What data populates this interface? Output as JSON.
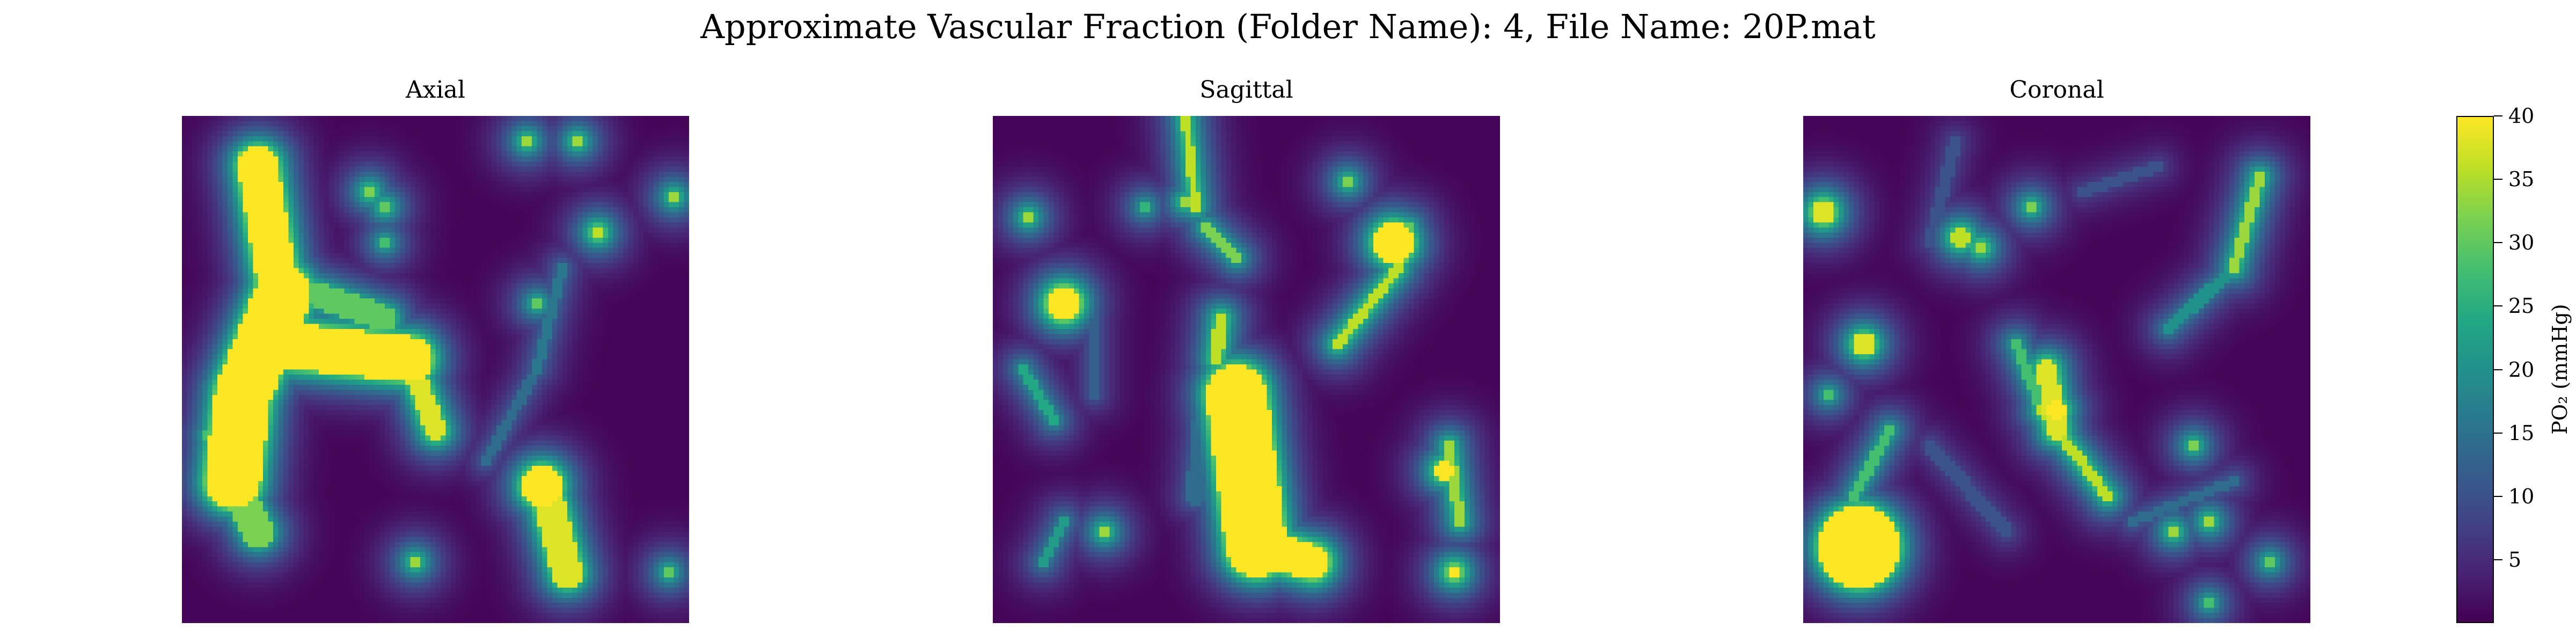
{
  "chart_data": {
    "type": "heatmap",
    "title": "Approximate Vascular Fraction (Folder Name): 4, File Name: 20P.mat",
    "panels": [
      {
        "title": "Axial",
        "vessels": [
          {
            "a": [
              0.15,
              0.1
            ],
            "b": [
              0.2,
              0.4
            ],
            "w": 0.04,
            "v": 40
          },
          {
            "a": [
              0.2,
              0.35
            ],
            "b": [
              0.12,
              0.55
            ],
            "w": 0.055,
            "v": 40
          },
          {
            "a": [
              0.12,
              0.55
            ],
            "b": [
              0.1,
              0.72
            ],
            "w": 0.055,
            "v": 40
          },
          {
            "a": [
              0.18,
              0.45
            ],
            "b": [
              0.45,
              0.48
            ],
            "w": 0.045,
            "v": 40
          },
          {
            "a": [
              0.45,
              0.48
            ],
            "b": [
              0.5,
              0.62
            ],
            "w": 0.02,
            "v": 38
          },
          {
            "a": [
              0.1,
              0.72
            ],
            "b": [
              0.15,
              0.82
            ],
            "w": 0.03,
            "v": 32
          },
          {
            "a": [
              0.72,
              0.75
            ],
            "b": [
              0.76,
              0.9
            ],
            "w": 0.03,
            "v": 38
          },
          {
            "a": [
              0.26,
              0.35
            ],
            "b": [
              0.4,
              0.4
            ],
            "w": 0.025,
            "v": 30
          },
          {
            "a": [
              0.75,
              0.3
            ],
            "b": [
              0.7,
              0.5
            ],
            "w": 0.01,
            "v": 16
          },
          {
            "a": [
              0.7,
              0.5
            ],
            "b": [
              0.6,
              0.68
            ],
            "w": 0.01,
            "v": 14
          }
        ],
        "blobs": [
          {
            "x": 0.71,
            "y": 0.73,
            "r": 0.04,
            "v": 40
          },
          {
            "x": 0.37,
            "y": 0.15,
            "r": 0.015,
            "v": 32
          },
          {
            "x": 0.4,
            "y": 0.18,
            "r": 0.015,
            "v": 30
          },
          {
            "x": 0.68,
            "y": 0.05,
            "r": 0.012,
            "v": 34
          },
          {
            "x": 0.78,
            "y": 0.05,
            "r": 0.012,
            "v": 34
          },
          {
            "x": 0.97,
            "y": 0.16,
            "r": 0.012,
            "v": 34
          },
          {
            "x": 0.82,
            "y": 0.23,
            "r": 0.015,
            "v": 36
          },
          {
            "x": 0.4,
            "y": 0.25,
            "r": 0.012,
            "v": 28
          },
          {
            "x": 0.7,
            "y": 0.37,
            "r": 0.012,
            "v": 30
          },
          {
            "x": 0.46,
            "y": 0.88,
            "r": 0.012,
            "v": 34
          },
          {
            "x": 0.96,
            "y": 0.9,
            "r": 0.012,
            "v": 30
          },
          {
            "x": 0.12,
            "y": 0.08,
            "r": 0.012,
            "v": 32
          },
          {
            "x": 0.05,
            "y": 0.63,
            "r": 0.012,
            "v": 28
          }
        ]
      },
      {
        "title": "Sagittal",
        "vessels": [
          {
            "a": [
              0.48,
              0.55
            ],
            "b": [
              0.52,
              0.85
            ],
            "w": 0.06,
            "v": 40
          },
          {
            "a": [
              0.52,
              0.85
            ],
            "b": [
              0.63,
              0.88
            ],
            "w": 0.035,
            "v": 40
          },
          {
            "a": [
              0.48,
              0.52
            ],
            "b": [
              0.5,
              0.6
            ],
            "w": 0.03,
            "v": 38
          },
          {
            "a": [
              0.68,
              0.45
            ],
            "b": [
              0.8,
              0.3
            ],
            "w": 0.01,
            "v": 36
          },
          {
            "a": [
              0.8,
              0.3
            ],
            "b": [
              0.82,
              0.22
            ],
            "w": 0.012,
            "v": 30
          },
          {
            "a": [
              0.38,
              0.0
            ],
            "b": [
              0.4,
              0.18
            ],
            "w": 0.008,
            "v": 36
          },
          {
            "a": [
              0.42,
              0.22
            ],
            "b": [
              0.48,
              0.28
            ],
            "w": 0.008,
            "v": 32
          },
          {
            "a": [
              0.45,
              0.4
            ],
            "b": [
              0.44,
              0.48
            ],
            "w": 0.012,
            "v": 36
          },
          {
            "a": [
              0.9,
              0.65
            ],
            "b": [
              0.92,
              0.8
            ],
            "w": 0.01,
            "v": 34
          },
          {
            "a": [
              0.06,
              0.5
            ],
            "b": [
              0.12,
              0.6
            ],
            "w": 0.01,
            "v": 24
          },
          {
            "a": [
              0.1,
              0.88
            ],
            "b": [
              0.14,
              0.8
            ],
            "w": 0.008,
            "v": 22
          },
          {
            "a": [
              0.2,
              0.4
            ],
            "b": [
              0.2,
              0.55
            ],
            "w": 0.012,
            "v": 12
          },
          {
            "a": [
              0.42,
              0.55
            ],
            "b": [
              0.4,
              0.75
            ],
            "w": 0.02,
            "v": 14
          }
        ],
        "blobs": [
          {
            "x": 0.79,
            "y": 0.25,
            "r": 0.04,
            "v": 40
          },
          {
            "x": 0.14,
            "y": 0.37,
            "r": 0.035,
            "v": 40
          },
          {
            "x": 0.07,
            "y": 0.2,
            "r": 0.012,
            "v": 34
          },
          {
            "x": 0.38,
            "y": 0.17,
            "r": 0.012,
            "v": 34
          },
          {
            "x": 0.7,
            "y": 0.13,
            "r": 0.012,
            "v": 32
          },
          {
            "x": 0.89,
            "y": 0.7,
            "r": 0.018,
            "v": 40
          },
          {
            "x": 0.91,
            "y": 0.9,
            "r": 0.015,
            "v": 40
          },
          {
            "x": 0.22,
            "y": 0.82,
            "r": 0.012,
            "v": 34
          },
          {
            "x": 0.3,
            "y": 0.18,
            "r": 0.012,
            "v": 26
          }
        ]
      },
      {
        "title": "Coronal",
        "vessels": [
          {
            "a": [
              0.42,
              0.45
            ],
            "b": [
              0.47,
              0.58
            ],
            "w": 0.01,
            "v": 28
          },
          {
            "a": [
              0.47,
              0.58
            ],
            "b": [
              0.6,
              0.75
            ],
            "w": 0.01,
            "v": 36
          },
          {
            "a": [
              0.48,
              0.5
            ],
            "b": [
              0.5,
              0.62
            ],
            "w": 0.02,
            "v": 38
          },
          {
            "a": [
              0.9,
              0.12
            ],
            "b": [
              0.85,
              0.3
            ],
            "w": 0.01,
            "v": 34
          },
          {
            "a": [
              0.85,
              0.3
            ],
            "b": [
              0.72,
              0.42
            ],
            "w": 0.012,
            "v": 20
          },
          {
            "a": [
              0.17,
              0.62
            ],
            "b": [
              0.1,
              0.75
            ],
            "w": 0.01,
            "v": 28
          },
          {
            "a": [
              0.3,
              0.05
            ],
            "b": [
              0.25,
              0.25
            ],
            "w": 0.012,
            "v": 10
          },
          {
            "a": [
              0.55,
              0.15
            ],
            "b": [
              0.7,
              0.1
            ],
            "w": 0.01,
            "v": 10
          },
          {
            "a": [
              0.65,
              0.8
            ],
            "b": [
              0.85,
              0.72
            ],
            "w": 0.01,
            "v": 14
          },
          {
            "a": [
              0.25,
              0.65
            ],
            "b": [
              0.4,
              0.82
            ],
            "w": 0.014,
            "v": 10
          }
        ],
        "blobs": [
          {
            "x": 0.11,
            "y": 0.85,
            "r": 0.08,
            "v": 40
          },
          {
            "x": 0.04,
            "y": 0.19,
            "r": 0.025,
            "v": 38
          },
          {
            "x": 0.31,
            "y": 0.24,
            "r": 0.02,
            "v": 36
          },
          {
            "x": 0.35,
            "y": 0.26,
            "r": 0.015,
            "v": 34
          },
          {
            "x": 0.45,
            "y": 0.18,
            "r": 0.012,
            "v": 32
          },
          {
            "x": 0.12,
            "y": 0.45,
            "r": 0.022,
            "v": 38
          },
          {
            "x": 0.05,
            "y": 0.55,
            "r": 0.012,
            "v": 28
          },
          {
            "x": 0.77,
            "y": 0.65,
            "r": 0.012,
            "v": 32
          },
          {
            "x": 0.73,
            "y": 0.82,
            "r": 0.012,
            "v": 34
          },
          {
            "x": 0.8,
            "y": 0.8,
            "r": 0.012,
            "v": 34
          },
          {
            "x": 0.92,
            "y": 0.88,
            "r": 0.012,
            "v": 30
          },
          {
            "x": 0.8,
            "y": 0.96,
            "r": 0.012,
            "v": 28
          },
          {
            "x": 0.5,
            "y": 0.58,
            "r": 0.018,
            "v": 40
          }
        ]
      }
    ],
    "grid": [
      100,
      100
    ],
    "colormap": "viridis",
    "colorbar": {
      "label": "PO₂ (mmHg)",
      "range": [
        0,
        40
      ],
      "ticks": [
        5,
        10,
        15,
        20,
        25,
        30,
        35,
        40
      ]
    }
  }
}
